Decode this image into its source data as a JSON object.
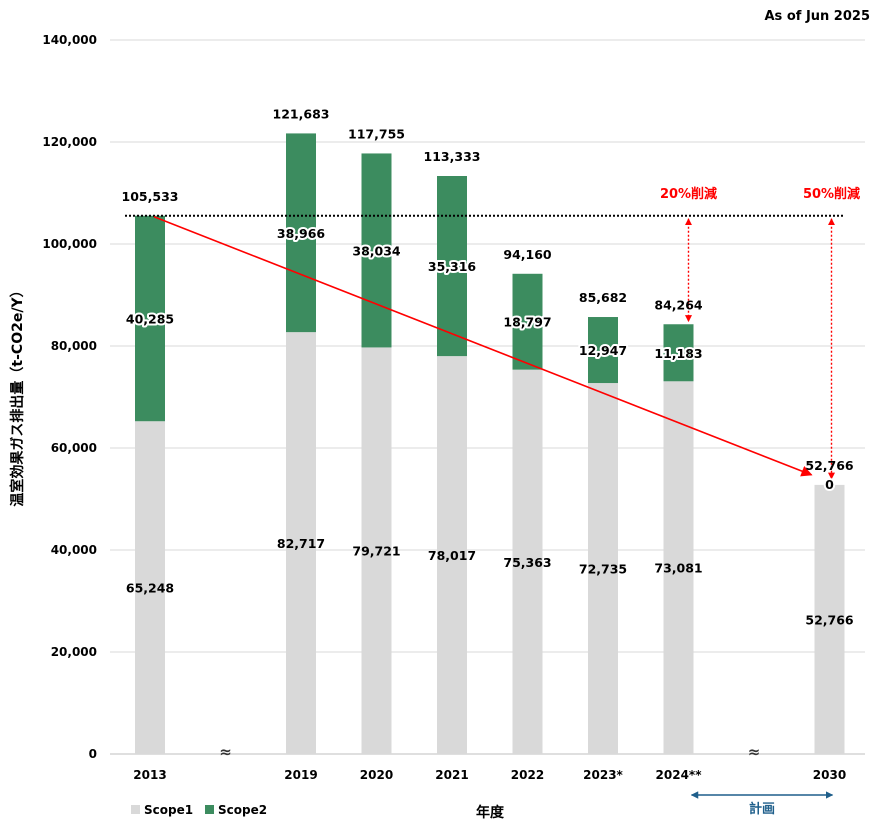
{
  "as_of": "As of Jun 2025",
  "chart_data": {
    "type": "bar",
    "stacked": true,
    "ylabel": "温室効果ガス排出量（t-CO2e/Y）",
    "xlabel": "年度",
    "ylim": [
      0,
      140000
    ],
    "yticks": [
      0,
      20000,
      40000,
      60000,
      80000,
      100000,
      120000,
      140000
    ],
    "ytick_labels": [
      "0",
      "20,000",
      "40,000",
      "60,000",
      "80,000",
      "100,000",
      "120,000",
      "140,000"
    ],
    "grid": true,
    "legend_position": "bottom-left",
    "categories": [
      "2013",
      "2019",
      "2020",
      "2021",
      "2022",
      "2023*",
      "2024**",
      "2030"
    ],
    "series": [
      {
        "name": "Scope1",
        "color": "#d9d9d9",
        "values": [
          65248,
          82717,
          79721,
          78017,
          75363,
          72735,
          73081,
          52766
        ],
        "labels": [
          "65,248",
          "82,717",
          "79,721",
          "78,017",
          "75,363",
          "72,735",
          "73,081",
          "52,766"
        ]
      },
      {
        "name": "Scope2",
        "color": "#3c8c5f",
        "values": [
          40285,
          38966,
          38034,
          35316,
          18797,
          12947,
          11183,
          0
        ],
        "labels": [
          "40,285",
          "38,966",
          "38,034",
          "35,316",
          "18,797",
          "12,947",
          "11,183",
          "0"
        ]
      }
    ],
    "totals": [
      "105,533",
      "121,683",
      "117,755",
      "113,333",
      "94,160",
      "85,682",
      "84,264",
      "52,766"
    ],
    "baseline_value": 105533,
    "break_marker": "≈",
    "annotations": [
      {
        "text": "20%削減",
        "category": "2024**",
        "color": "#ff0000"
      },
      {
        "text": "50%削減",
        "category": "2030",
        "color": "#ff0000"
      },
      {
        "text": "計画",
        "from": "2024**",
        "to": "2030",
        "color": "#1f5f8b"
      }
    ]
  }
}
